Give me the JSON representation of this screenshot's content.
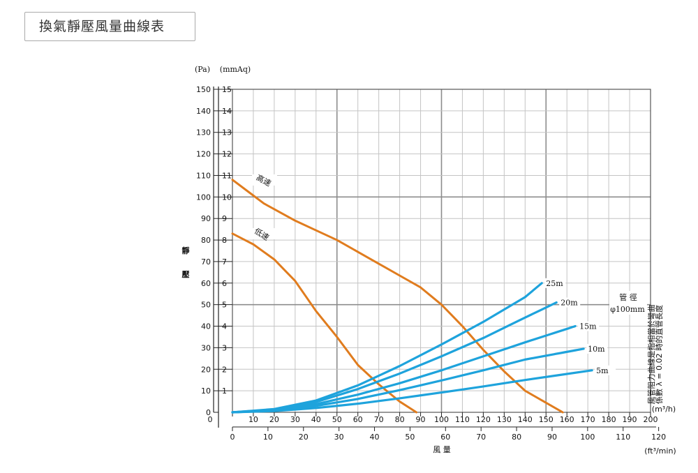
{
  "page": {
    "title": "換氣靜壓風量曲線表"
  },
  "colors": {
    "grid_light": "#c4c4c4",
    "grid_major": "#8c8c8c",
    "speed_curve": "#e07c1e",
    "duct_curve": "#1ea3dc"
  },
  "chart_data": {
    "type": "line",
    "y_units": {
      "left": "(Pa)",
      "right": "(mmAq)"
    },
    "ylabel": [
      "靜",
      "壓"
    ],
    "xlabel": "風 量",
    "x_unit_top": "(m³/h)",
    "x_unit_bottom": "(ft³/min)",
    "xlim": [
      0,
      200
    ],
    "ylim_pa": [
      0,
      150
    ],
    "ylim_mmAq": [
      0,
      15
    ],
    "pa_ticks": [
      0,
      10,
      20,
      30,
      40,
      50,
      60,
      70,
      80,
      90,
      100,
      110,
      120,
      130,
      140,
      150
    ],
    "mmAq_ticks": [
      1,
      2,
      3,
      4,
      5,
      6,
      7,
      8,
      9,
      10,
      11,
      12,
      13,
      14,
      15
    ],
    "x_ticks_m3h": [
      0,
      10,
      20,
      30,
      40,
      50,
      60,
      70,
      80,
      90,
      100,
      110,
      120,
      130,
      140,
      150,
      160,
      170,
      180,
      190,
      200
    ],
    "x_ticks_ftmin": [
      0,
      10,
      20,
      30,
      40,
      50,
      60,
      70,
      80,
      90,
      100,
      110,
      120
    ],
    "duct_note": {
      "title": "管 徑",
      "value": "φ100mm"
    },
    "side_note": [
      "風管阻力曲線是指相當於彎曲",
      "係數 λ = 0.02 時的直管長度"
    ],
    "series": [
      {
        "name": "高速",
        "kind": "fan",
        "x": [
          0,
          15,
          30,
          50,
          70,
          90,
          100,
          110,
          120,
          130,
          140,
          158
        ],
        "y": [
          108,
          97,
          89,
          80,
          69,
          58,
          50,
          40,
          29,
          19,
          10,
          0
        ]
      },
      {
        "name": "低速",
        "kind": "fan",
        "x": [
          0,
          10,
          20,
          30,
          40,
          50,
          60,
          70,
          80,
          88
        ],
        "y": [
          83,
          78,
          71,
          61,
          47,
          35,
          22,
          13,
          5,
          0
        ]
      },
      {
        "name": "25m",
        "kind": "duct",
        "x": [
          0,
          20,
          40,
          60,
          80,
          100,
          120,
          140,
          148
        ],
        "y": [
          0,
          1.5,
          5.5,
          12.5,
          21.5,
          31.5,
          42,
          53.5,
          60
        ]
      },
      {
        "name": "20m",
        "kind": "duct",
        "x": [
          0,
          20,
          40,
          60,
          80,
          100,
          120,
          140,
          155
        ],
        "y": [
          0,
          1.3,
          4.8,
          10.8,
          18,
          26,
          34.5,
          44,
          51
        ]
      },
      {
        "name": "15m",
        "kind": "duct",
        "x": [
          0,
          20,
          40,
          60,
          80,
          100,
          120,
          140,
          164
        ],
        "y": [
          0,
          1,
          3.8,
          8.2,
          13.5,
          19.5,
          26,
          32.5,
          40
        ]
      },
      {
        "name": "10m",
        "kind": "duct",
        "x": [
          0,
          20,
          40,
          60,
          80,
          100,
          120,
          140,
          168
        ],
        "y": [
          0,
          0.8,
          3,
          6.2,
          10.3,
          14.8,
          19.5,
          24.5,
          29.5
        ]
      },
      {
        "name": "5m",
        "kind": "duct",
        "x": [
          0,
          20,
          40,
          60,
          80,
          100,
          120,
          140,
          172
        ],
        "y": [
          0,
          0.6,
          2,
          4,
          6.5,
          9.2,
          12,
          15,
          19.5
        ]
      }
    ]
  }
}
